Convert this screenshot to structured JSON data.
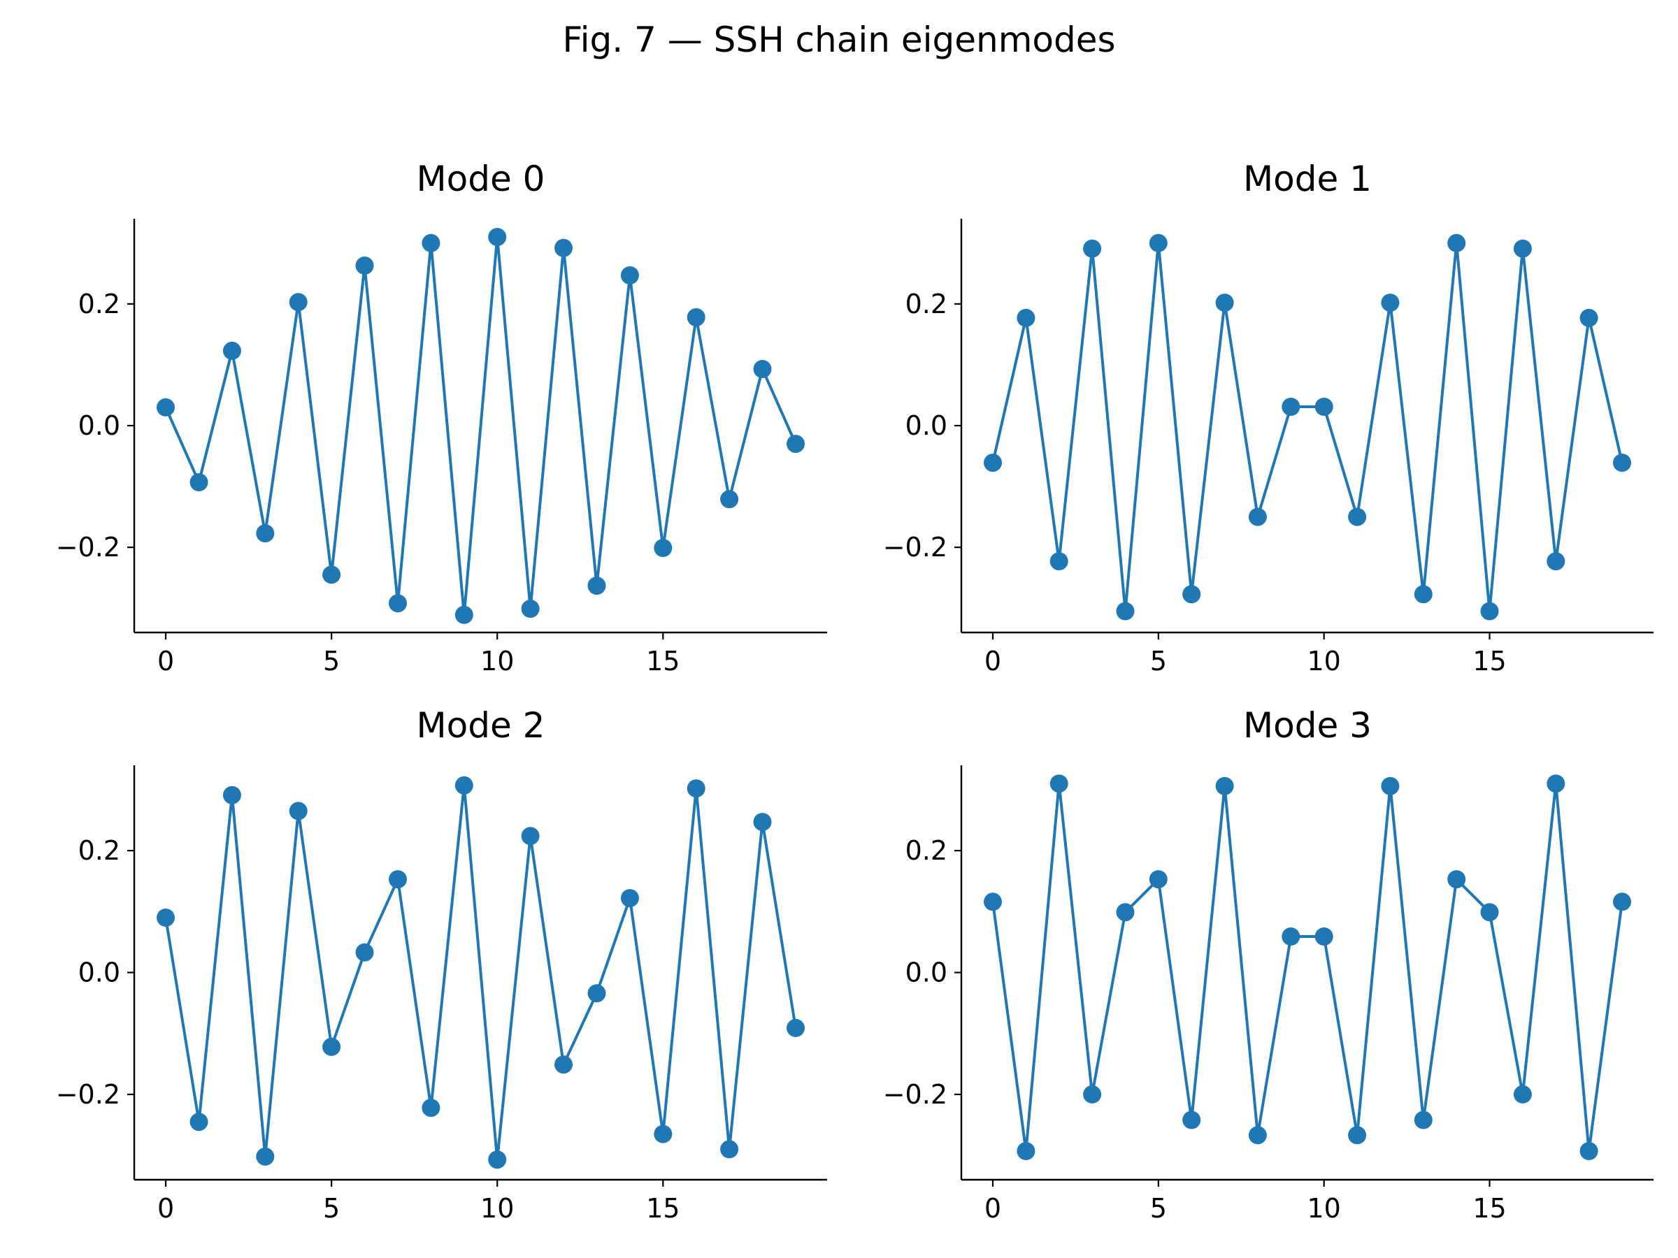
{
  "figure": {
    "title": "Fig. 7 — SSH chain eigenmodes"
  },
  "colors": {
    "series": "#1f77b4",
    "axes": "#000000",
    "background": "#ffffff"
  },
  "chart_data": [
    {
      "type": "line",
      "title": "Mode 0",
      "markers": "circle",
      "xlabel": "",
      "ylabel": "",
      "xlim": [
        -0.95,
        19.95
      ],
      "ylim": [
        -0.34,
        0.34
      ],
      "xticks": [
        0,
        5,
        10,
        15
      ],
      "yticks": [
        -0.2,
        0.0,
        0.2
      ],
      "xtick_labels": [
        "0",
        "5",
        "10",
        "15"
      ],
      "ytick_labels": [
        "−0.2",
        "0.0",
        "0.2"
      ],
      "grid": false,
      "x": [
        0,
        1,
        2,
        3,
        4,
        5,
        6,
        7,
        8,
        9,
        10,
        11,
        12,
        13,
        14,
        15,
        16,
        17,
        18,
        19
      ],
      "y": [
        0.03,
        -0.093,
        0.123,
        -0.177,
        0.203,
        -0.245,
        0.263,
        -0.292,
        0.3,
        -0.311,
        0.31,
        -0.301,
        0.292,
        -0.263,
        0.247,
        -0.201,
        0.178,
        -0.121,
        0.093,
        -0.03
      ]
    },
    {
      "type": "line",
      "title": "Mode 1",
      "markers": "circle",
      "xlabel": "",
      "ylabel": "",
      "xlim": [
        -0.95,
        19.95
      ],
      "ylim": [
        -0.34,
        0.34
      ],
      "xticks": [
        0,
        5,
        10,
        15
      ],
      "yticks": [
        -0.2,
        0.0,
        0.2
      ],
      "xtick_labels": [
        "0",
        "5",
        "10",
        "15"
      ],
      "ytick_labels": [
        "−0.2",
        "0.0",
        "0.2"
      ],
      "grid": false,
      "x": [
        0,
        1,
        2,
        3,
        4,
        5,
        6,
        7,
        8,
        9,
        10,
        11,
        12,
        13,
        14,
        15,
        16,
        17,
        18,
        19
      ],
      "y": [
        -0.061,
        0.177,
        -0.223,
        0.291,
        -0.305,
        0.3,
        -0.277,
        0.202,
        -0.15,
        0.031,
        0.031,
        -0.15,
        0.202,
        -0.277,
        0.3,
        -0.305,
        0.291,
        -0.223,
        0.177,
        -0.061
      ]
    },
    {
      "type": "line",
      "title": "Mode 2",
      "markers": "circle",
      "xlabel": "",
      "ylabel": "",
      "xlim": [
        -0.95,
        19.95
      ],
      "ylim": [
        -0.34,
        0.34
      ],
      "xticks": [
        0,
        5,
        10,
        15
      ],
      "yticks": [
        -0.2,
        0.0,
        0.2
      ],
      "xtick_labels": [
        "0",
        "5",
        "10",
        "15"
      ],
      "ytick_labels": [
        "−0.2",
        "0.0",
        "0.2"
      ],
      "grid": false,
      "x": [
        0,
        1,
        2,
        3,
        4,
        5,
        6,
        7,
        8,
        9,
        10,
        11,
        12,
        13,
        14,
        15,
        16,
        17,
        18,
        19
      ],
      "y": [
        0.09,
        -0.245,
        0.291,
        -0.302,
        0.265,
        -0.122,
        0.033,
        0.153,
        -0.222,
        0.307,
        -0.307,
        0.224,
        -0.151,
        -0.034,
        0.122,
        -0.265,
        0.302,
        -0.29,
        0.247,
        -0.091
      ]
    },
    {
      "type": "line",
      "title": "Mode 3",
      "markers": "circle",
      "xlabel": "",
      "ylabel": "",
      "xlim": [
        -0.95,
        19.95
      ],
      "ylim": [
        -0.34,
        0.34
      ],
      "xticks": [
        0,
        5,
        10,
        15
      ],
      "yticks": [
        -0.2,
        0.0,
        0.2
      ],
      "xtick_labels": [
        "0",
        "5",
        "10",
        "15"
      ],
      "ytick_labels": [
        "−0.2",
        "0.0",
        "0.2"
      ],
      "grid": false,
      "x": [
        0,
        1,
        2,
        3,
        4,
        5,
        6,
        7,
        8,
        9,
        10,
        11,
        12,
        13,
        14,
        15,
        16,
        17,
        18,
        19
      ],
      "y": [
        0.116,
        -0.293,
        0.31,
        -0.2,
        0.099,
        0.153,
        -0.242,
        0.306,
        -0.267,
        0.059,
        0.059,
        -0.267,
        0.306,
        -0.242,
        0.153,
        0.099,
        -0.2,
        0.31,
        -0.293,
        0.116
      ]
    }
  ]
}
